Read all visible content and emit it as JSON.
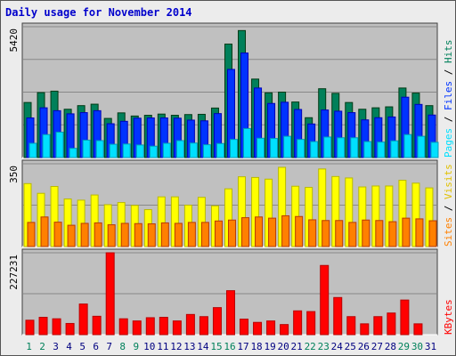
{
  "title": "Daily usage for November 2014",
  "colors": {
    "hits": "#00805a",
    "files": "#0033ff",
    "pages": "#00e0ff",
    "visits": "#ffff00",
    "sites": "#ff8000",
    "kbytes": "#ff0000",
    "plot_bg": "#c0c0c0",
    "weekend_label": "#00805a",
    "weekday_label": "#000080"
  },
  "chart_data": [
    {
      "type": "bar",
      "panel": "hits-files-pages",
      "x": [
        1,
        2,
        3,
        4,
        5,
        6,
        7,
        8,
        9,
        10,
        11,
        12,
        13,
        14,
        15,
        16,
        17,
        18,
        19,
        20,
        21,
        22,
        23,
        24,
        25,
        26,
        27,
        28,
        29,
        30,
        31
      ],
      "axis_max_label": "5420",
      "ylim": [
        0,
        5420
      ],
      "side_label": [
        "Pages",
        "Files",
        "Hits"
      ],
      "series": [
        {
          "name": "Hits",
          "values": [
            2280,
            2690,
            2750,
            2000,
            2150,
            2210,
            1620,
            1850,
            1720,
            1750,
            1800,
            1750,
            1780,
            1790,
            2050,
            4700,
            5260,
            3250,
            2680,
            2710,
            2300,
            1650,
            2850,
            2660,
            2280,
            2000,
            2060,
            2100,
            2880,
            2670,
            2150
          ]
        },
        {
          "name": "Files",
          "values": [
            1640,
            2060,
            1940,
            1810,
            1860,
            1940,
            1400,
            1500,
            1630,
            1640,
            1640,
            1630,
            1550,
            1520,
            1820,
            3650,
            4330,
            2880,
            2240,
            2290,
            1990,
            1390,
            1970,
            1920,
            1860,
            1560,
            1650,
            1680,
            2500,
            2200,
            1760
          ]
        },
        {
          "name": "Pages",
          "values": [
            590,
            950,
            1050,
            380,
            720,
            700,
            550,
            560,
            520,
            470,
            590,
            700,
            600,
            530,
            580,
            750,
            1200,
            800,
            790,
            880,
            750,
            660,
            850,
            820,
            820,
            660,
            640,
            690,
            950,
            880,
            630
          ]
        }
      ]
    },
    {
      "type": "bar",
      "panel": "visits-sites",
      "x": [
        1,
        2,
        3,
        4,
        5,
        6,
        7,
        8,
        9,
        10,
        11,
        12,
        13,
        14,
        15,
        16,
        17,
        18,
        19,
        20,
        21,
        22,
        23,
        24,
        25,
        26,
        27,
        28,
        29,
        30,
        31
      ],
      "axis_max_label": "350",
      "ylim": [
        0,
        350
      ],
      "side_label": [
        "Sites",
        "Visits"
      ],
      "series": [
        {
          "name": "Visits",
          "values": [
            266,
            225,
            254,
            201,
            196,
            218,
            177,
            186,
            174,
            156,
            210,
            210,
            175,
            208,
            172,
            244,
            295,
            292,
            285,
            335,
            255,
            250,
            328,
            296,
            290,
            252,
            256,
            256,
            280,
            268,
            248
          ]
        },
        {
          "name": "Sites",
          "values": [
            102,
            125,
            103,
            90,
            98,
            100,
            92,
            98,
            97,
            96,
            100,
            98,
            102,
            102,
            108,
            112,
            122,
            125,
            120,
            130,
            127,
            113,
            110,
            110,
            102,
            112,
            110,
            105,
            120,
            117,
            109
          ]
        }
      ]
    },
    {
      "type": "bar",
      "panel": "kbytes",
      "x": [
        1,
        2,
        3,
        4,
        5,
        6,
        7,
        8,
        9,
        10,
        11,
        12,
        13,
        14,
        15,
        16,
        17,
        18,
        19,
        20,
        21,
        22,
        23,
        24,
        25,
        26,
        27,
        28,
        29,
        30,
        31
      ],
      "axis_max_label": "227231",
      "ylim": [
        0,
        227231
      ],
      "side_label": [
        "KBytes"
      ],
      "series": [
        {
          "name": "KBytes",
          "values": [
            40000,
            48000,
            44000,
            31000,
            85000,
            51000,
            227231,
            44000,
            38000,
            47000,
            48000,
            38000,
            56000,
            50000,
            75000,
            122000,
            43000,
            34000,
            38000,
            28000,
            66000,
            64000,
            192000,
            103000,
            50000,
            30000,
            50000,
            60000,
            96000,
            30000,
            0
          ]
        }
      ]
    }
  ],
  "x_labels": [
    "1",
    "2",
    "3",
    "4",
    "5",
    "6",
    "7",
    "8",
    "9",
    "10",
    "11",
    "12",
    "13",
    "14",
    "15",
    "16",
    "17",
    "18",
    "19",
    "20",
    "21",
    "22",
    "23",
    "24",
    "25",
    "26",
    "27",
    "28",
    "29",
    "30",
    "31"
  ],
  "weekend_days": [
    1,
    2,
    8,
    9,
    15,
    16,
    22,
    23,
    29,
    30
  ]
}
